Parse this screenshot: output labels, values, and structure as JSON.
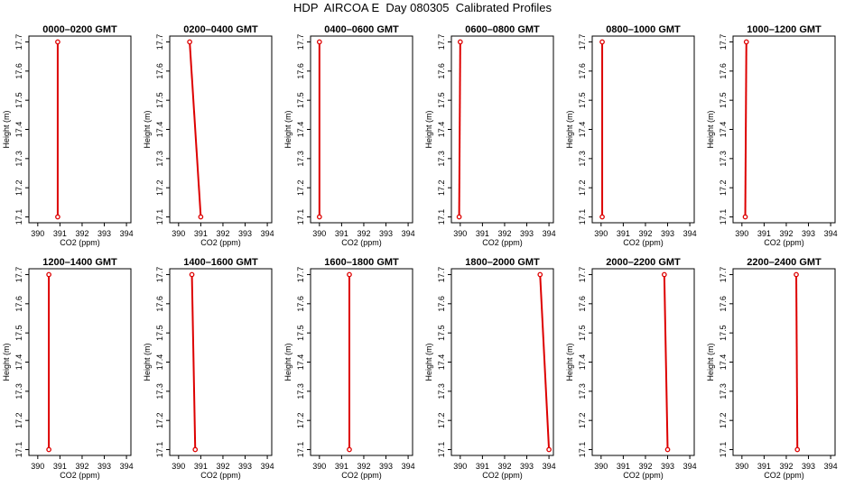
{
  "page": {
    "title": "HDP  AIRCOA E  Day 080305  Calibrated Profiles"
  },
  "colors": {
    "profile": "#dd0000",
    "frame": "#000000",
    "background": "#ffffff"
  },
  "chart_data": [
    {
      "type": "line",
      "title": "0000–0200 GMT",
      "xlabel": "CO2 (ppm)",
      "ylabel": "Height (m)",
      "xlim": [
        389.6,
        394.2
      ],
      "ylim": [
        17.08,
        17.72
      ],
      "xticks": [
        "390",
        "391",
        "392",
        "393",
        "394"
      ],
      "yticks": [
        "17.1",
        "17.2",
        "17.3",
        "17.4",
        "17.5",
        "17.6",
        "17.7"
      ],
      "series": [
        {
          "points": [
            [
              390.9,
              17.1
            ],
            [
              390.9,
              17.7
            ]
          ]
        }
      ]
    },
    {
      "type": "line",
      "title": "0200–0400 GMT",
      "xlabel": "CO2 (ppm)",
      "ylabel": "Height (m)",
      "xlim": [
        389.6,
        394.2
      ],
      "ylim": [
        17.08,
        17.72
      ],
      "xticks": [
        "390",
        "391",
        "392",
        "393",
        "394"
      ],
      "yticks": [
        "17.1",
        "17.2",
        "17.3",
        "17.4",
        "17.5",
        "17.6",
        "17.7"
      ],
      "series": [
        {
          "points": [
            [
              391.0,
              17.1
            ],
            [
              390.5,
              17.7
            ]
          ]
        }
      ]
    },
    {
      "type": "line",
      "title": "0400–0600 GMT",
      "xlabel": "CO2 (ppm)",
      "ylabel": "Height (m)",
      "xlim": [
        389.6,
        394.2
      ],
      "ylim": [
        17.08,
        17.72
      ],
      "xticks": [
        "390",
        "391",
        "392",
        "393",
        "394"
      ],
      "yticks": [
        "17.1",
        "17.2",
        "17.3",
        "17.4",
        "17.5",
        "17.6",
        "17.7"
      ],
      "series": [
        {
          "points": [
            [
              390.0,
              17.1
            ],
            [
              390.0,
              17.7
            ]
          ]
        }
      ]
    },
    {
      "type": "line",
      "title": "0600–0800 GMT",
      "xlabel": "CO2 (ppm)",
      "ylabel": "Height (m)",
      "xlim": [
        389.6,
        394.2
      ],
      "ylim": [
        17.08,
        17.72
      ],
      "xticks": [
        "390",
        "391",
        "392",
        "393",
        "394"
      ],
      "yticks": [
        "17.1",
        "17.2",
        "17.3",
        "17.4",
        "17.5",
        "17.6",
        "17.7"
      ],
      "series": [
        {
          "points": [
            [
              389.95,
              17.1
            ],
            [
              390.0,
              17.7
            ]
          ]
        }
      ]
    },
    {
      "type": "line",
      "title": "0800–1000 GMT",
      "xlabel": "CO2 (ppm)",
      "ylabel": "Height (m)",
      "xlim": [
        389.6,
        394.2
      ],
      "ylim": [
        17.08,
        17.72
      ],
      "xticks": [
        "390",
        "391",
        "392",
        "393",
        "394"
      ],
      "yticks": [
        "17.1",
        "17.2",
        "17.3",
        "17.4",
        "17.5",
        "17.6",
        "17.7"
      ],
      "series": [
        {
          "points": [
            [
              390.05,
              17.1
            ],
            [
              390.05,
              17.7
            ]
          ]
        }
      ]
    },
    {
      "type": "line",
      "title": "1000–1200 GMT",
      "xlabel": "CO2 (ppm)",
      "ylabel": "Height (m)",
      "xlim": [
        389.6,
        394.2
      ],
      "ylim": [
        17.08,
        17.72
      ],
      "xticks": [
        "390",
        "391",
        "392",
        "393",
        "394"
      ],
      "yticks": [
        "17.1",
        "17.2",
        "17.3",
        "17.4",
        "17.5",
        "17.6",
        "17.7"
      ],
      "series": [
        {
          "points": [
            [
              390.15,
              17.1
            ],
            [
              390.2,
              17.7
            ]
          ]
        }
      ]
    },
    {
      "type": "line",
      "title": "1200–1400 GMT",
      "xlabel": "CO2 (ppm)",
      "ylabel": "Height (m)",
      "xlim": [
        389.6,
        394.2
      ],
      "ylim": [
        17.08,
        17.72
      ],
      "xticks": [
        "390",
        "391",
        "392",
        "393",
        "394"
      ],
      "yticks": [
        "17.1",
        "17.2",
        "17.3",
        "17.4",
        "17.5",
        "17.6",
        "17.7"
      ],
      "series": [
        {
          "points": [
            [
              390.5,
              17.1
            ],
            [
              390.5,
              17.7
            ]
          ]
        }
      ]
    },
    {
      "type": "line",
      "title": "1400–1600 GMT",
      "xlabel": "CO2 (ppm)",
      "ylabel": "Height (m)",
      "xlim": [
        389.6,
        394.2
      ],
      "ylim": [
        17.08,
        17.72
      ],
      "xticks": [
        "390",
        "391",
        "392",
        "393",
        "394"
      ],
      "yticks": [
        "17.1",
        "17.2",
        "17.3",
        "17.4",
        "17.5",
        "17.6",
        "17.7"
      ],
      "series": [
        {
          "points": [
            [
              390.75,
              17.1
            ],
            [
              390.6,
              17.7
            ]
          ]
        }
      ]
    },
    {
      "type": "line",
      "title": "1600–1800 GMT",
      "xlabel": "CO2 (ppm)",
      "ylabel": "Height (m)",
      "xlim": [
        389.6,
        394.2
      ],
      "ylim": [
        17.08,
        17.72
      ],
      "xticks": [
        "390",
        "391",
        "392",
        "393",
        "394"
      ],
      "yticks": [
        "17.1",
        "17.2",
        "17.3",
        "17.4",
        "17.5",
        "17.6",
        "17.7"
      ],
      "series": [
        {
          "points": [
            [
              391.35,
              17.1
            ],
            [
              391.35,
              17.7
            ]
          ]
        }
      ]
    },
    {
      "type": "line",
      "title": "1800–2000 GMT",
      "xlabel": "CO2 (ppm)",
      "ylabel": "Height (m)",
      "xlim": [
        389.6,
        394.2
      ],
      "ylim": [
        17.08,
        17.72
      ],
      "xticks": [
        "390",
        "391",
        "392",
        "393",
        "394"
      ],
      "yticks": [
        "17.1",
        "17.2",
        "17.3",
        "17.4",
        "17.5",
        "17.6",
        "17.7"
      ],
      "series": [
        {
          "points": [
            [
              394.0,
              17.1
            ],
            [
              393.6,
              17.7
            ]
          ]
        }
      ]
    },
    {
      "type": "line",
      "title": "2000–2200 GMT",
      "xlabel": "CO2 (ppm)",
      "ylabel": "Height (m)",
      "xlim": [
        389.6,
        394.2
      ],
      "ylim": [
        17.08,
        17.72
      ],
      "xticks": [
        "390",
        "391",
        "392",
        "393",
        "394"
      ],
      "yticks": [
        "17.1",
        "17.2",
        "17.3",
        "17.4",
        "17.5",
        "17.6",
        "17.7"
      ],
      "series": [
        {
          "points": [
            [
              393.0,
              17.1
            ],
            [
              392.85,
              17.7
            ]
          ]
        }
      ]
    },
    {
      "type": "line",
      "title": "2200–2400 GMT",
      "xlabel": "CO2 (ppm)",
      "ylabel": "Height (m)",
      "xlim": [
        389.6,
        394.2
      ],
      "ylim": [
        17.08,
        17.72
      ],
      "xticks": [
        "390",
        "391",
        "392",
        "393",
        "394"
      ],
      "yticks": [
        "17.1",
        "17.2",
        "17.3",
        "17.4",
        "17.5",
        "17.6",
        "17.7"
      ],
      "series": [
        {
          "points": [
            [
              392.5,
              17.1
            ],
            [
              392.45,
              17.7
            ]
          ]
        }
      ]
    }
  ]
}
